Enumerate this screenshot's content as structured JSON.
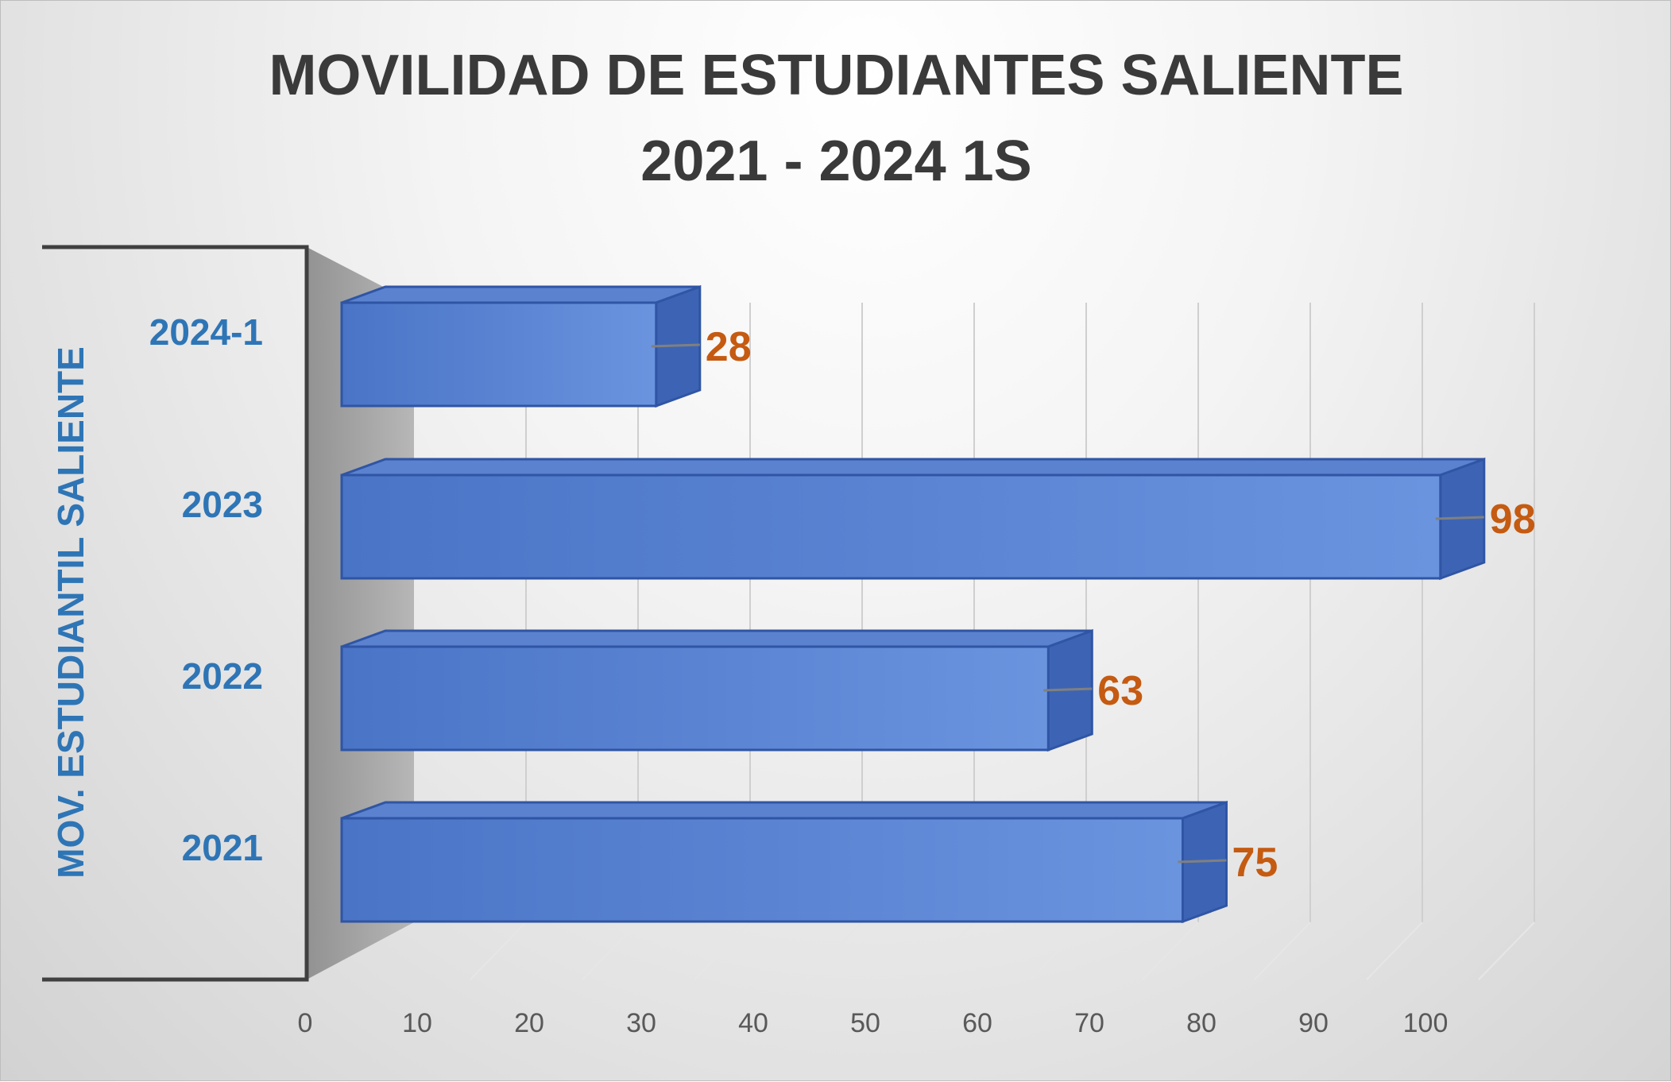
{
  "chart_data": {
    "type": "bar",
    "orientation": "horizontal",
    "style": "3d",
    "title_lines": [
      "MOVILIDAD DE ESTUDIANTES SALIENTE",
      "2021 - 2024 1S"
    ],
    "ylabel": "MOV. ESTUDIANTIL SALIENTE",
    "xlabel": "",
    "categories": [
      "2024-1",
      "2023",
      "2022",
      "2021"
    ],
    "values": [
      28,
      98,
      63,
      75
    ],
    "xlim": [
      0,
      100
    ],
    "x_ticks": [
      0,
      10,
      20,
      30,
      40,
      50,
      60,
      70,
      80,
      90,
      100
    ],
    "grid": true,
    "legend": "none",
    "colors": {
      "bar": "#4472c4",
      "category_label": "#2e75b6",
      "value_label": "#c55a11",
      "title": "#3a3a3a"
    }
  }
}
